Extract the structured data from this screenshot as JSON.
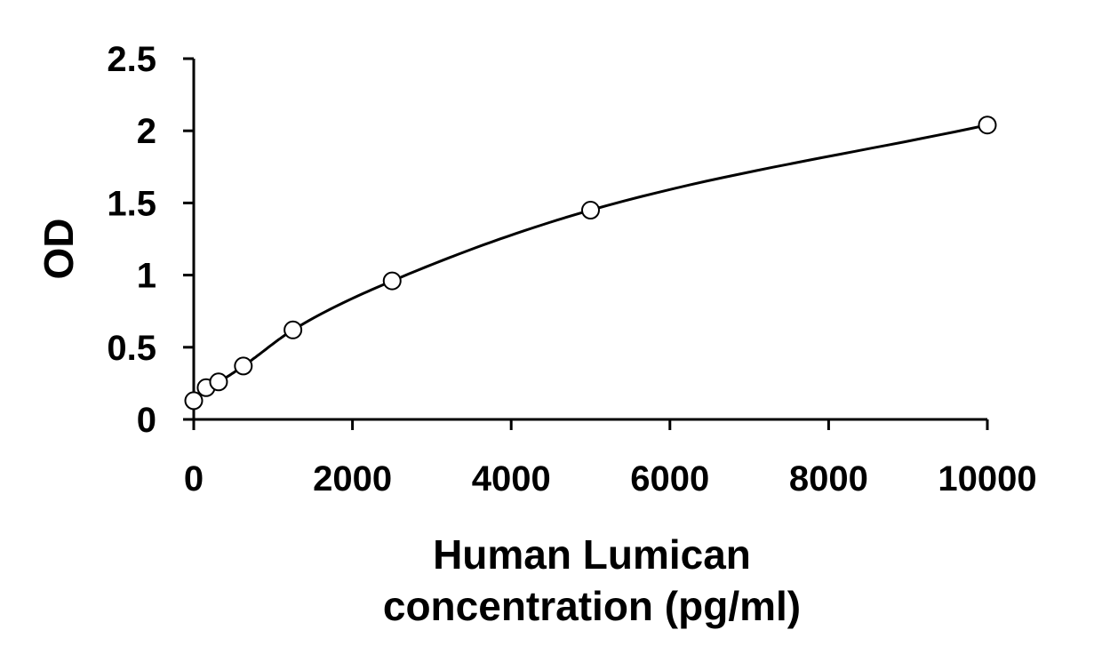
{
  "chart_data": {
    "type": "scatter",
    "title": "",
    "xlabel_lines": [
      "Human Lumican",
      "concentration (pg/ml)"
    ],
    "ylabel": "OD",
    "xlim": [
      0,
      10000
    ],
    "ylim": [
      0,
      2.5
    ],
    "x_ticks": [
      0,
      2000,
      4000,
      6000,
      8000,
      10000
    ],
    "x_tick_labels": [
      "0",
      "2000",
      "4000",
      "6000",
      "8000",
      "10000"
    ],
    "y_ticks": [
      0,
      0.5,
      1,
      1.5,
      2,
      2.5
    ],
    "y_tick_labels": [
      "0",
      "0.5",
      "1",
      "1.5",
      "2",
      "2.5"
    ],
    "grid": false,
    "legend": "none",
    "series": [
      {
        "marker": "open-circle",
        "line": "smooth-fit",
        "x": [
          0,
          156,
          313,
          625,
          1250,
          2500,
          5000,
          10000
        ],
        "y": [
          0.13,
          0.22,
          0.26,
          0.37,
          0.62,
          0.96,
          1.45,
          2.04
        ]
      }
    ]
  }
}
